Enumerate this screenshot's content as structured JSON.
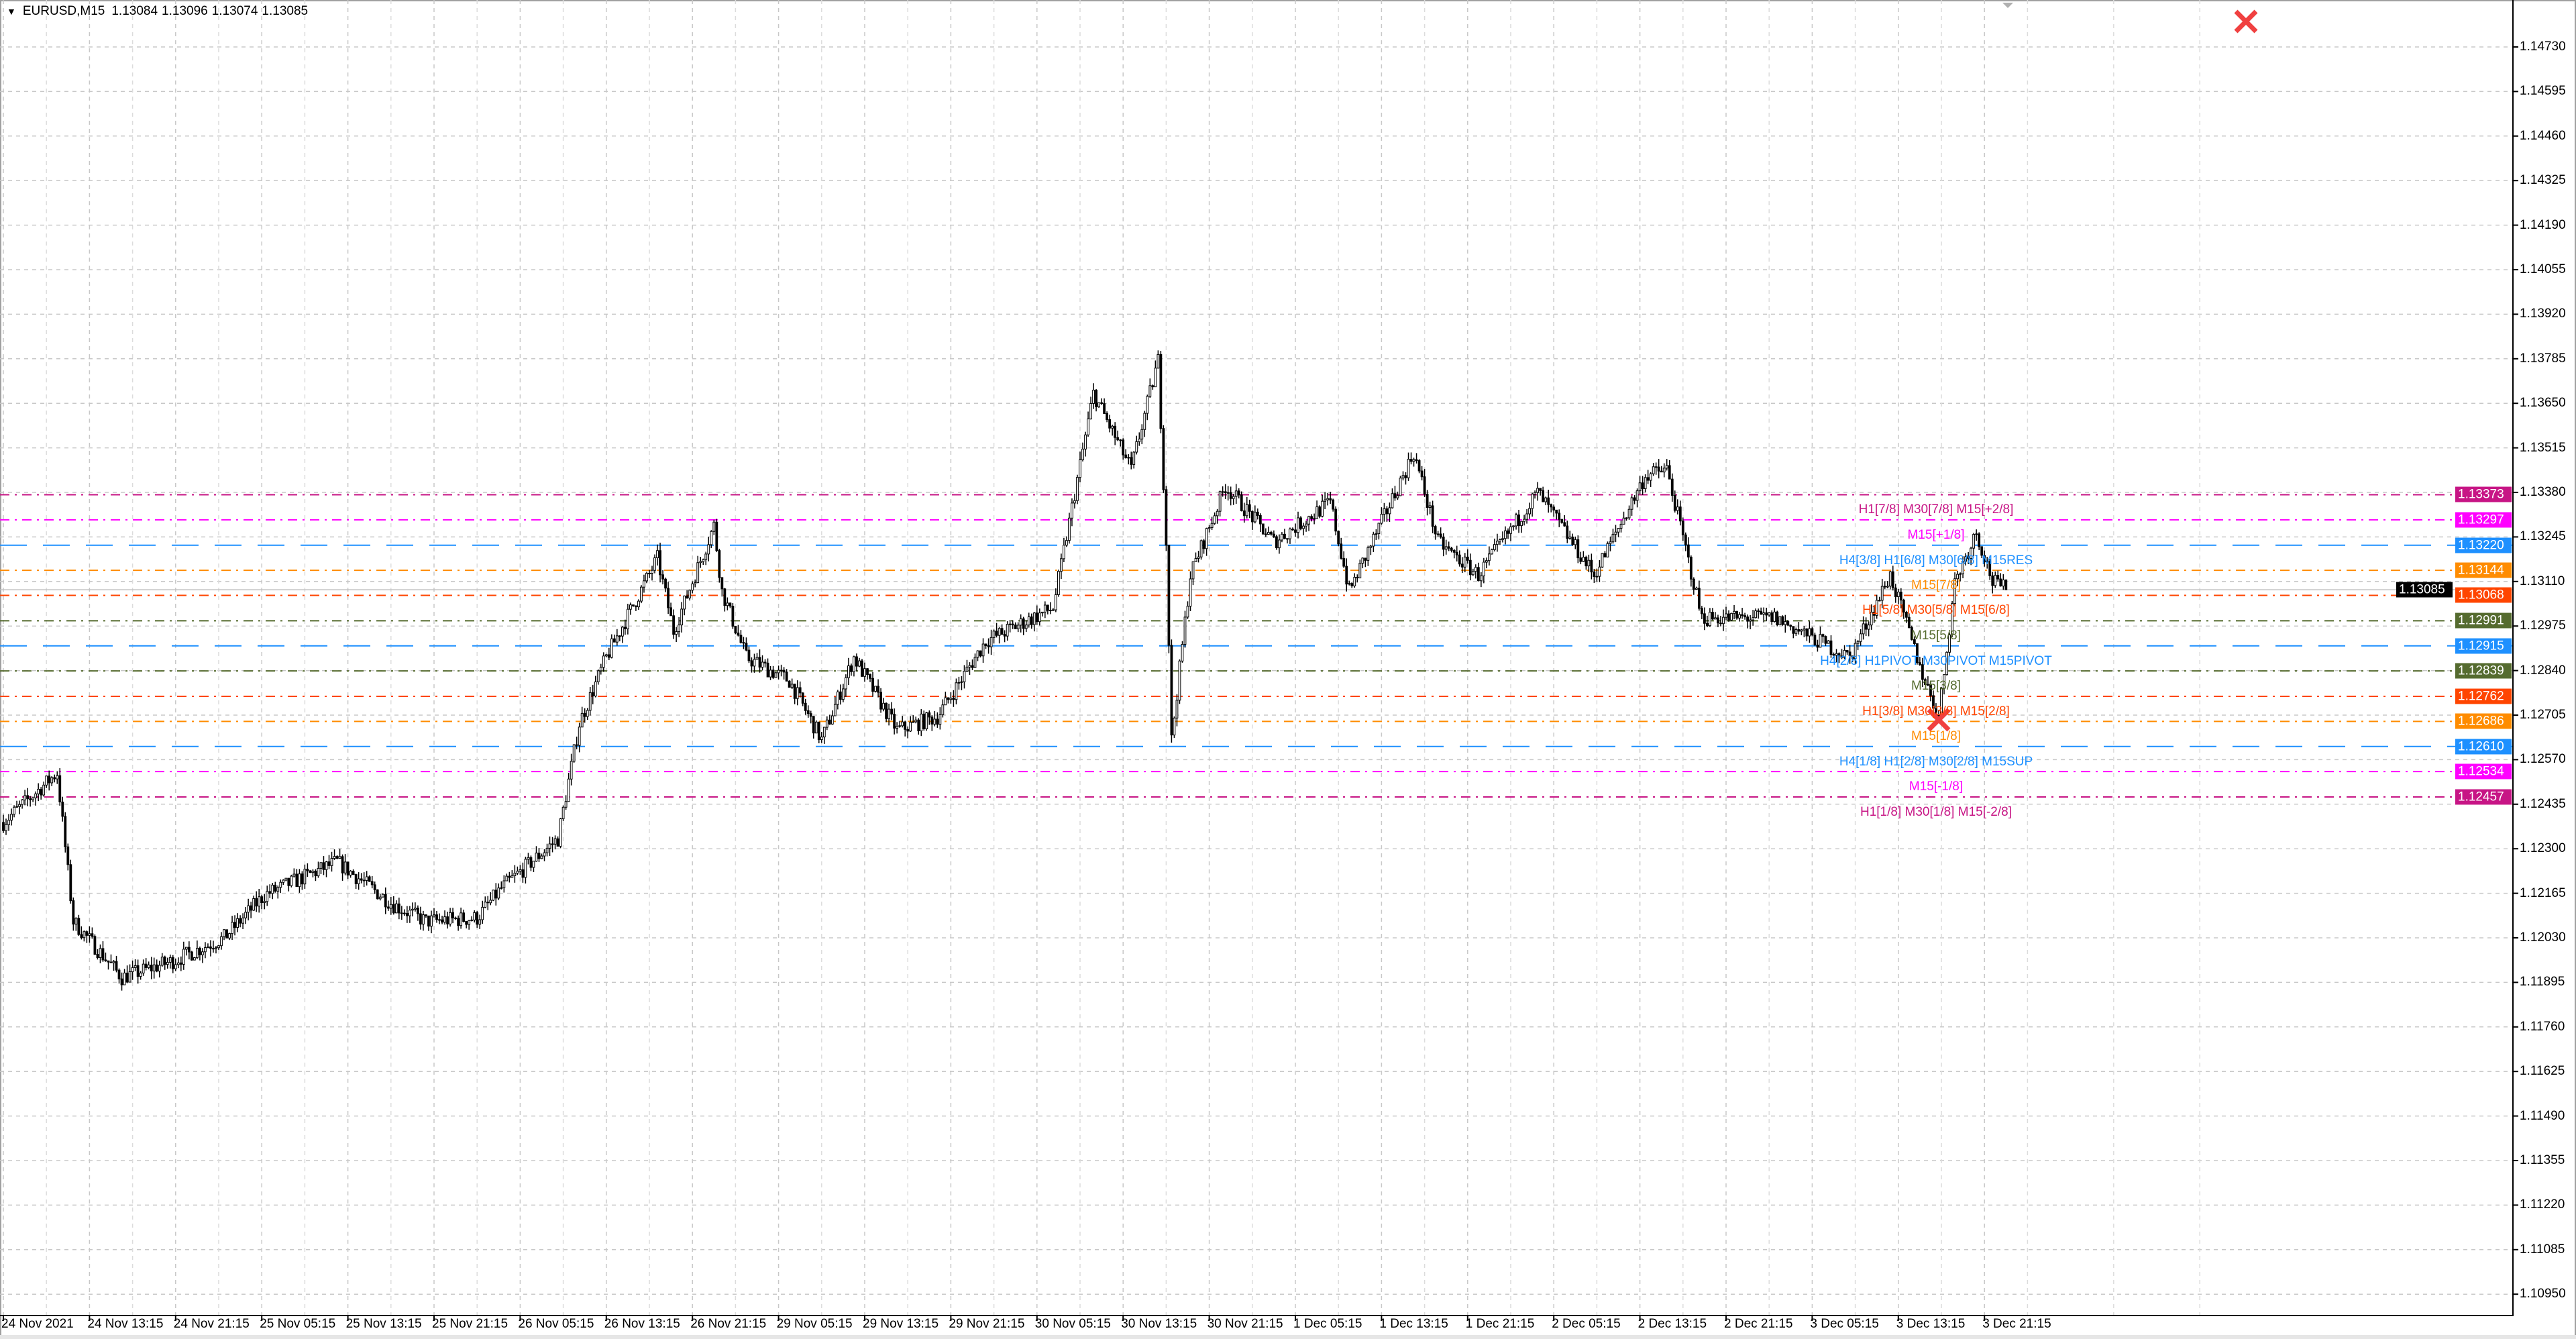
{
  "header": {
    "symbol": "EURUSD,M15",
    "open": "1.13084",
    "high": "1.13096",
    "low": "1.13074",
    "close": "1.13085"
  },
  "current_price": {
    "value": "1.13085",
    "color": "#000000"
  },
  "price_ticks": [
    "1.14730",
    "1.14595",
    "1.14460",
    "1.14325",
    "1.14190",
    "1.14055",
    "1.13920",
    "1.13785",
    "1.13650",
    "1.13515",
    "1.13380",
    "1.13245",
    "1.13110",
    "1.12975",
    "1.12840",
    "1.12705",
    "1.12570",
    "1.12435",
    "1.12300",
    "1.12165",
    "1.12030",
    "1.11895",
    "1.11760",
    "1.11625",
    "1.11490",
    "1.11355",
    "1.11220",
    "1.11085",
    "1.10950"
  ],
  "time_labels": [
    "24 Nov 2021",
    "24 Nov 13:15",
    "24 Nov 21:15",
    "25 Nov 05:15",
    "25 Nov 13:15",
    "25 Nov 21:15",
    "26 Nov 05:15",
    "26 Nov 13:15",
    "26 Nov 21:15",
    "29 Nov 05:15",
    "29 Nov 13:15",
    "29 Nov 21:15",
    "30 Nov 05:15",
    "30 Nov 13:15",
    "30 Nov 21:15",
    "1 Dec 05:15",
    "1 Dec 13:15",
    "1 Dec 21:15",
    "2 Dec 05:15",
    "2 Dec 13:15",
    "2 Dec 21:15",
    "3 Dec 05:15",
    "3 Dec 13:15",
    "3 Dec 21:15"
  ],
  "levels": [
    {
      "label": "H1[7/8] M30[7/8] M15[+2/8]",
      "price": "1.13373",
      "color": "#C71585",
      "style": "dashdot"
    },
    {
      "label": "M15[+1/8]",
      "price": "1.13297",
      "color": "#FF00FF",
      "style": "dashdot"
    },
    {
      "label": "H4[3/8] H1[6/8] M30[6/8] M15RES",
      "price": "1.13220",
      "color": "#1E90FF",
      "style": "dash"
    },
    {
      "label": "M15[7/8]",
      "price": "1.13144",
      "color": "#FF8C00",
      "style": "dashdot"
    },
    {
      "label": "H1[5/8] M30[5/8] M15[6/8]",
      "price": "1.13068",
      "color": "#FF4500",
      "style": "dashdot"
    },
    {
      "label": "M15[5/8]",
      "price": "1.12991",
      "color": "#556B2F",
      "style": "dashdot"
    },
    {
      "label": "H4[2/8] H1PIVOT M30PIVOT M15PIVOT",
      "price": "1.12915",
      "color": "#1E90FF",
      "style": "dash"
    },
    {
      "label": "M15[3/8]",
      "price": "1.12839",
      "color": "#556B2F",
      "style": "dashdot"
    },
    {
      "label": "H1[3/8] M30[3/8] M15[2/8]",
      "price": "1.12762",
      "color": "#FF4500",
      "style": "dashdot"
    },
    {
      "label": "M15[1/8]",
      "price": "1.12686",
      "color": "#FF8C00",
      "style": "dashdot"
    },
    {
      "label": "H4[1/8] H1[2/8] M30[2/8] M15SUP",
      "price": "1.12610",
      "color": "#1E90FF",
      "style": "dash"
    },
    {
      "label": "M15[-1/8]",
      "price": "1.12534",
      "color": "#FF00FF",
      "style": "dashdot"
    },
    {
      "label": "H1[1/8] M30[1/8] M15[-2/8]",
      "price": "1.12457",
      "color": "#C71585",
      "style": "dashdot"
    }
  ],
  "markers": {
    "close_icon_color": "#F04040"
  },
  "chart_data": {
    "type": "candlestick",
    "symbol": "EURUSD",
    "timeframe": "M15",
    "ylim": [
      1.1095,
      1.1473
    ],
    "grid": true,
    "approx_close_path": [
      [
        "24 Nov 05:15",
        1.1238
      ],
      [
        "24 Nov 10:15",
        1.1253
      ],
      [
        "24 Nov 11:45",
        1.1208
      ],
      [
        "24 Nov 16:15",
        1.1191
      ],
      [
        "24 Nov 21:00",
        1.1196
      ],
      [
        "25 Nov 01:45",
        1.1203
      ],
      [
        "25 Nov 05:30",
        1.1216
      ],
      [
        "25 Nov 12:15",
        1.1226
      ],
      [
        "25 Nov 17:30",
        1.1213
      ],
      [
        "25 Nov 20:30",
        1.1208
      ],
      [
        "26 Nov 01:15",
        1.1209
      ],
      [
        "26 Nov 03:30",
        1.1218
      ],
      [
        "26 Nov 08:45",
        1.1233
      ],
      [
        "26 Nov 10:45",
        1.1268
      ],
      [
        "26 Nov 13:15",
        1.1288
      ],
      [
        "26 Nov 18:00",
        1.1318
      ],
      [
        "26 Nov 19:30",
        1.1296
      ],
      [
        "26 Nov 23:15",
        1.1328
      ],
      [
        "29 Nov 00:00",
        1.1308
      ],
      [
        "29 Nov 02:15",
        1.1288
      ],
      [
        "29 Nov 06:15",
        1.1281
      ],
      [
        "29 Nov 09:15",
        1.1263
      ],
      [
        "29 Nov 12:15",
        1.1288
      ],
      [
        "29 Nov 16:15",
        1.1266
      ],
      [
        "29 Nov 20:00",
        1.127
      ],
      [
        "30 Nov 00:30",
        1.1293
      ],
      [
        "30 Nov 06:45",
        1.1303
      ],
      [
        "30 Nov 10:30",
        1.1368
      ],
      [
        "30 Nov 14:00",
        1.1345
      ],
      [
        "30 Nov 16:30",
        1.1378
      ],
      [
        "30 Nov 17:15",
        1.1323
      ],
      [
        "30 Nov 17:45",
        1.1263
      ],
      [
        "30 Nov 19:30",
        1.1313
      ],
      [
        "30 Nov 22:45",
        1.134
      ],
      [
        "1 Dec 03:15",
        1.1323
      ],
      [
        "1 Dec 08:30",
        1.1335
      ],
      [
        "1 Dec 10:15",
        1.1308
      ],
      [
        "1 Dec 16:15",
        1.135
      ],
      [
        "1 Dec 18:30",
        1.1323
      ],
      [
        "1 Dec 22:15",
        1.1313
      ],
      [
        "2 Dec 03:45",
        1.1338
      ],
      [
        "2 Dec 09:00",
        1.1313
      ],
      [
        "2 Dec 13:45",
        1.1343
      ],
      [
        "2 Dec 15:45",
        1.1345
      ],
      [
        "2 Dec 19:00",
        1.13
      ],
      [
        "3 Dec 01:45",
        1.13
      ],
      [
        "3 Dec 08:45",
        1.1288
      ],
      [
        "3 Dec 12:30",
        1.1313
      ],
      [
        "3 Dec 15:30",
        1.1283
      ],
      [
        "3 Dec 17:00",
        1.127
      ],
      [
        "3 Dec 18:30",
        1.1311
      ],
      [
        "3 Dec 20:30",
        1.1326
      ],
      [
        "3 Dec 22:00",
        1.1311
      ],
      [
        "3 Dec 23:15",
        1.13085
      ]
    ]
  }
}
